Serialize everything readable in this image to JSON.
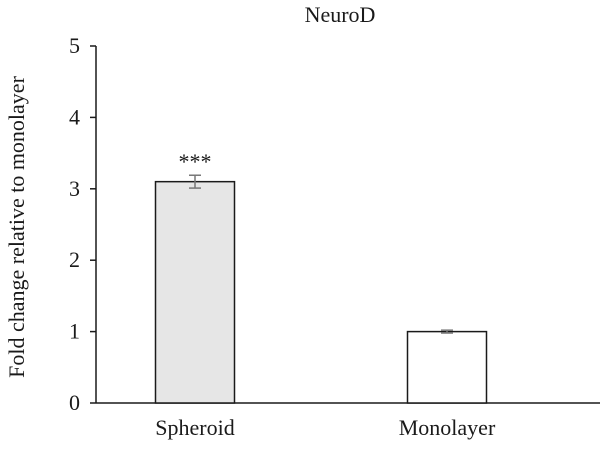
{
  "chart_data": {
    "type": "bar",
    "title": "NeuroD",
    "xlabel": "",
    "ylabel": "Fold change relative to monolayer",
    "categories": [
      "Spheroid",
      "Monolayer"
    ],
    "values": [
      3.1,
      1.0
    ],
    "error": [
      0.09,
      0.02
    ],
    "annotations": [
      "***",
      ""
    ],
    "bar_colors": [
      "#e6e6e6",
      "#ffffff"
    ],
    "ylim": [
      0,
      5
    ],
    "yticks": [
      0,
      1,
      2,
      3,
      4,
      5
    ],
    "grid": false,
    "legend": "none"
  }
}
